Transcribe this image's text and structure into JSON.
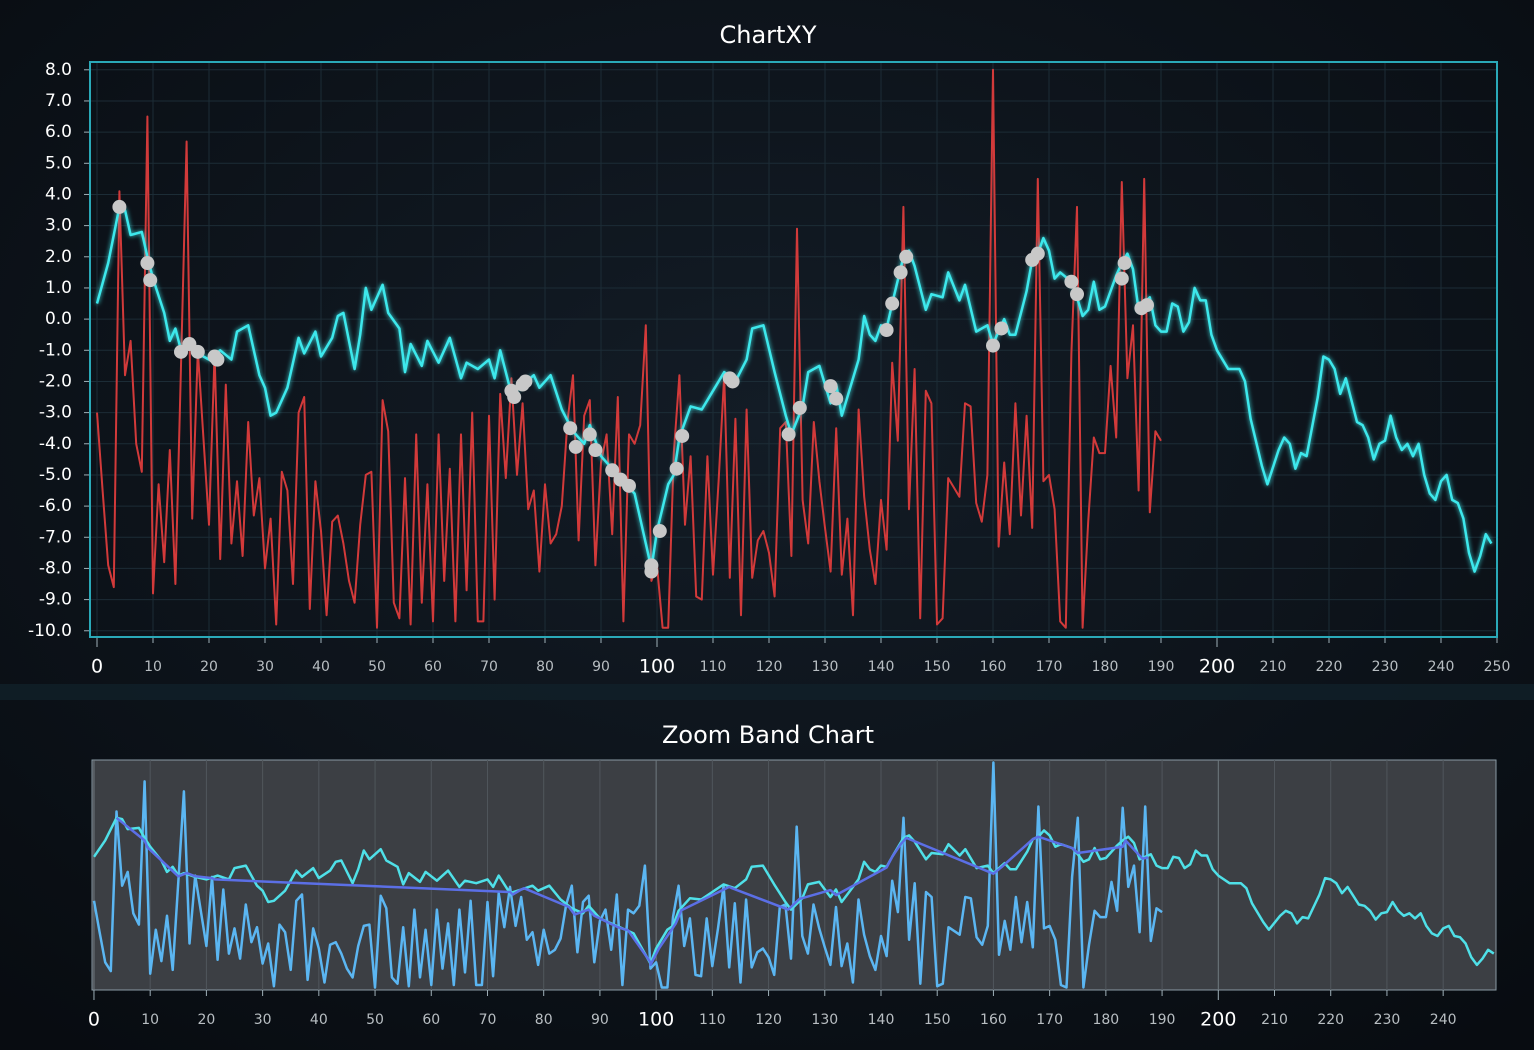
{
  "chart_data": [
    {
      "type": "line",
      "title": "ChartXY",
      "xlim": [
        -1.25,
        250
      ],
      "ylim": [
        -10.2,
        8.25
      ],
      "grid": true,
      "xticks": [
        0,
        10,
        20,
        30,
        40,
        50,
        60,
        70,
        80,
        90,
        100,
        110,
        120,
        130,
        140,
        150,
        160,
        170,
        180,
        190,
        200,
        210,
        220,
        230,
        240,
        250
      ],
      "yticks": [
        {
          "value": -10,
          "label": "-10.0"
        },
        {
          "value": -9,
          "label": "-9.0"
        },
        {
          "value": -8,
          "label": "-8.0"
        },
        {
          "value": -7,
          "label": "-7.0"
        },
        {
          "value": -6,
          "label": "-6.0"
        },
        {
          "value": -5,
          "label": "-5.0"
        },
        {
          "value": -4,
          "label": "-4.0"
        },
        {
          "value": -3,
          "label": "-3.0"
        },
        {
          "value": -2,
          "label": "-2.0"
        },
        {
          "value": -1,
          "label": "-1.0"
        },
        {
          "value": 0,
          "label": "0.0"
        },
        {
          "value": 1,
          "label": "1.0"
        },
        {
          "value": 2,
          "label": "2.0"
        },
        {
          "value": 3,
          "label": "3.0"
        },
        {
          "value": 4,
          "label": "4.0"
        },
        {
          "value": 5,
          "label": "5.0"
        },
        {
          "value": 6,
          "label": "6.0"
        },
        {
          "value": 7,
          "label": "7.0"
        },
        {
          "value": 8,
          "label": "8.0"
        }
      ],
      "series": [
        {
          "type": "line",
          "color": "#d23a3a",
          "x": [
            0,
            1,
            2,
            3,
            4,
            5,
            6,
            7,
            8,
            9,
            10,
            11,
            12,
            13,
            14,
            15,
            16,
            17,
            18,
            19,
            20,
            21,
            22,
            23,
            24,
            25,
            26,
            27,
            28,
            29,
            30,
            31,
            32,
            33,
            34,
            35,
            36,
            37,
            38,
            39,
            40,
            41,
            42,
            43,
            44,
            45,
            46,
            47,
            48,
            49,
            50,
            51,
            52,
            53,
            54,
            55,
            56,
            57,
            58,
            59,
            60,
            61,
            62,
            63,
            64,
            65,
            66,
            67,
            68,
            69,
            70,
            71,
            72,
            73,
            74,
            75,
            76,
            77,
            78,
            79,
            80,
            81,
            82,
            83,
            84,
            85,
            86,
            87,
            88,
            89,
            90,
            91,
            92,
            93,
            94,
            95,
            96,
            97,
            98,
            99,
            100,
            101,
            102,
            103,
            104,
            105,
            106,
            107,
            108,
            109,
            110,
            111,
            112,
            113,
            114,
            115,
            116,
            117,
            118,
            119,
            120,
            121,
            122,
            123,
            124,
            125,
            126,
            127,
            128,
            129,
            130,
            131,
            132,
            133,
            134,
            135,
            136,
            137,
            138,
            139,
            140,
            141,
            142,
            143,
            144,
            145,
            146,
            147,
            148,
            149,
            150,
            151,
            152,
            153,
            154,
            155,
            156,
            157,
            158,
            159,
            160,
            161,
            162,
            163,
            164,
            165,
            166,
            167,
            168,
            169,
            170,
            171,
            172,
            173,
            174,
            175,
            176,
            177,
            178,
            179,
            180,
            181,
            182,
            183,
            184,
            185,
            186,
            187,
            188,
            189,
            190
          ],
          "values": [
            -3.0,
            -5.5,
            -7.9,
            -8.6,
            4.1,
            -1.8,
            -0.7,
            -4.0,
            -4.9,
            6.5,
            -8.8,
            -5.3,
            -7.8,
            -4.2,
            -8.5,
            -1.5,
            5.7,
            -6.4,
            -1.0,
            -3.8,
            -6.6,
            -1.1,
            -7.7,
            -2.1,
            -7.2,
            -5.2,
            -7.6,
            -3.3,
            -6.3,
            -5.1,
            -8.0,
            -6.4,
            -9.8,
            -4.9,
            -5.5,
            -8.5,
            -3.0,
            -2.5,
            -9.3,
            -5.2,
            -6.8,
            -9.5,
            -6.5,
            -6.3,
            -7.2,
            -8.4,
            -9.1,
            -6.6,
            -5.0,
            -4.9,
            -9.9,
            -2.6,
            -3.6,
            -9.1,
            -9.6,
            -5.1,
            -9.8,
            -3.7,
            -9.1,
            -5.3,
            -9.7,
            -3.7,
            -8.4,
            -4.8,
            -9.7,
            -3.7,
            -8.7,
            -3.0,
            -9.7,
            -9.7,
            -3.1,
            -9.0,
            -2.4,
            -5.1,
            -1.9,
            -5.0,
            -2.7,
            -6.1,
            -5.5,
            -8.1,
            -5.3,
            -7.2,
            -6.9,
            -6.0,
            -3.3,
            -1.8,
            -7.1,
            -3.1,
            -2.6,
            -7.9,
            -4.6,
            -3.7,
            -6.9,
            -2.5,
            -9.7,
            -3.7,
            -4.0,
            -3.4,
            -0.2,
            -8.4,
            -7.9,
            -9.9,
            -9.9,
            -4.3,
            -1.8,
            -6.6,
            -4.4,
            -8.9,
            -9.0,
            -4.4,
            -8.2,
            -5.2,
            -1.8,
            -8.3,
            -3.2,
            -9.5,
            -2.9,
            -8.3,
            -7.1,
            -6.8,
            -7.5,
            -8.9,
            -3.5,
            -3.3,
            -7.6,
            2.9,
            -5.8,
            -7.2,
            -3.3,
            -5.2,
            -6.7,
            -8.1,
            -3.5,
            -8.2,
            -6.4,
            -9.5,
            -2.9,
            -5.7,
            -7.4,
            -8.5,
            -5.8,
            -7.4,
            -1.4,
            -3.9,
            3.6,
            -6.1,
            -1.6,
            -9.6,
            -2.3,
            -2.7,
            -9.8,
            -9.6,
            -5.1,
            -5.4,
            -5.7,
            -2.7,
            -2.8,
            -5.9,
            -6.5,
            -5.0,
            8.0,
            -7.3,
            -4.6,
            -6.9,
            -2.7,
            -6.3,
            -3.1,
            -6.7,
            4.5,
            -5.2,
            -5.0,
            -6.1,
            -9.7,
            -9.9,
            -1.1,
            3.6,
            -9.9,
            -6.5,
            -3.8,
            -4.3,
            -4.3,
            -1.5,
            -3.8,
            4.4,
            -1.9,
            -0.2,
            -5.5,
            4.5,
            -6.2,
            -3.6,
            -3.9
          ]
        },
        {
          "type": "line",
          "color": "#3ee8ec",
          "x": [
            0,
            2,
            4,
            5,
            6,
            8,
            9,
            10,
            12,
            13,
            14,
            15,
            16,
            18,
            20,
            22,
            24,
            25,
            27,
            29,
            30,
            31,
            32,
            34,
            36,
            37,
            39,
            40,
            42,
            43,
            44,
            46,
            47,
            48,
            49,
            51,
            52,
            54,
            55,
            56,
            58,
            59,
            61,
            63,
            65,
            66,
            68,
            70,
            71,
            72,
            74,
            76,
            78,
            79,
            81,
            83,
            85,
            87,
            88,
            90,
            92,
            94,
            96,
            98,
            99,
            100,
            102,
            103,
            104,
            106,
            108,
            110,
            112,
            114,
            116,
            117,
            119,
            121,
            123,
            124,
            126,
            127,
            129,
            131,
            132,
            133,
            134,
            136,
            137,
            138,
            139,
            140,
            141,
            142,
            144,
            145,
            146,
            148,
            149,
            151,
            152,
            154,
            155,
            157,
            159,
            160,
            162,
            163,
            164,
            166,
            167,
            168,
            169,
            170,
            171,
            172,
            174,
            175,
            176,
            177,
            178,
            179,
            180,
            182,
            183,
            184,
            185,
            186,
            187,
            188,
            189,
            190,
            191,
            192,
            193,
            194,
            195,
            196,
            197,
            198,
            199,
            200,
            202,
            204,
            205,
            206,
            208,
            209,
            211,
            212,
            213,
            214,
            215,
            216,
            218,
            219,
            220,
            221,
            222,
            223,
            224,
            225,
            226,
            227,
            228,
            229,
            230,
            231,
            232,
            233,
            234,
            235,
            236,
            237,
            238,
            239,
            240,
            241,
            242,
            243,
            244,
            245,
            246,
            247,
            248,
            249
          ],
          "values": [
            0.5,
            1.8,
            3.6,
            3.5,
            2.7,
            2.8,
            2.0,
            1.3,
            0.2,
            -0.7,
            -0.3,
            -1.0,
            -0.8,
            -1.1,
            -1.3,
            -1.0,
            -1.3,
            -0.4,
            -0.2,
            -1.8,
            -2.2,
            -3.1,
            -3.0,
            -2.2,
            -0.6,
            -1.1,
            -0.4,
            -1.2,
            -0.6,
            0.1,
            0.2,
            -1.6,
            -0.5,
            1.0,
            0.3,
            1.1,
            0.2,
            -0.3,
            -1.7,
            -0.8,
            -1.5,
            -0.7,
            -1.4,
            -0.6,
            -1.9,
            -1.4,
            -1.6,
            -1.3,
            -1.9,
            -1.0,
            -2.4,
            -2.1,
            -1.8,
            -2.2,
            -1.8,
            -2.9,
            -3.6,
            -4.0,
            -3.4,
            -4.4,
            -4.8,
            -5.2,
            -5.6,
            -7.2,
            -8.0,
            -6.8,
            -5.3,
            -5.0,
            -3.8,
            -2.8,
            -2.9,
            -2.3,
            -1.7,
            -2.0,
            -1.3,
            -0.3,
            -0.2,
            -1.7,
            -3.1,
            -3.7,
            -2.8,
            -1.7,
            -1.5,
            -2.7,
            -2.1,
            -3.1,
            -2.5,
            -1.3,
            0.1,
            -0.5,
            -0.7,
            -0.2,
            -0.3,
            0.5,
            2.0,
            2.2,
            1.7,
            0.3,
            0.8,
            0.7,
            1.5,
            0.6,
            1.1,
            -0.4,
            -0.2,
            -0.8,
            0.0,
            -0.5,
            -0.5,
            0.9,
            1.9,
            2.1,
            2.6,
            2.2,
            1.3,
            1.5,
            1.2,
            0.7,
            0.1,
            0.3,
            1.2,
            0.3,
            0.4,
            1.4,
            1.8,
            2.1,
            1.6,
            0.3,
            0.5,
            0.7,
            -0.2,
            -0.4,
            -0.4,
            0.5,
            0.4,
            -0.4,
            -0.1,
            1.0,
            0.6,
            0.6,
            -0.5,
            -1.0,
            -1.6,
            -1.6,
            -2.0,
            -3.2,
            -4.7,
            -5.3,
            -4.2,
            -3.8,
            -4.0,
            -4.8,
            -4.3,
            -4.4,
            -2.5,
            -1.2,
            -1.3,
            -1.6,
            -2.4,
            -1.9,
            -2.6,
            -3.3,
            -3.4,
            -3.8,
            -4.5,
            -4.0,
            -3.9,
            -3.1,
            -3.8,
            -4.2,
            -4.0,
            -4.4,
            -4.0,
            -5.0,
            -5.6,
            -5.8,
            -5.2,
            -5.0,
            -5.8,
            -5.9,
            -6.4,
            -7.5,
            -8.1,
            -7.6,
            -6.9,
            -7.2
          ]
        },
        {
          "type": "scatter",
          "color": "#c8c8c8",
          "x": [
            4,
            9,
            9.5,
            15,
            16.5,
            18,
            21,
            21.5,
            74,
            74.5,
            76,
            76.5,
            84.5,
            85.5,
            88,
            89,
            92,
            93.5,
            95,
            99,
            99,
            100.5,
            103.5,
            104.5,
            113,
            113.5,
            123.5,
            125.5,
            131,
            132,
            141,
            142,
            143.5,
            144.5,
            160,
            161.5,
            167,
            168,
            174,
            175,
            183,
            183.5,
            186.5,
            187.5
          ],
          "values": [
            3.6,
            1.8,
            1.25,
            -1.05,
            -0.8,
            -1.05,
            -1.2,
            -1.3,
            -2.3,
            -2.5,
            -2.1,
            -2.0,
            -3.5,
            -4.1,
            -3.7,
            -4.2,
            -4.85,
            -5.15,
            -5.35,
            -7.9,
            -8.1,
            -6.8,
            -4.8,
            -3.75,
            -1.9,
            -2.0,
            -3.7,
            -2.85,
            -2.15,
            -2.55,
            -0.35,
            0.5,
            1.5,
            2.0,
            -0.85,
            -0.3,
            1.9,
            2.1,
            1.2,
            0.8,
            1.3,
            1.8,
            0.35,
            0.45
          ]
        }
      ]
    },
    {
      "type": "line",
      "title": "Zoom Band Chart",
      "xlim": [
        -0.35,
        249.4
      ],
      "ylim": [
        -10.1,
        8.2
      ],
      "xticks": [
        0,
        10,
        20,
        30,
        40,
        50,
        60,
        70,
        80,
        90,
        100,
        110,
        120,
        130,
        140,
        150,
        160,
        170,
        180,
        190,
        200,
        210,
        220,
        230,
        240
      ],
      "colors": [
        "#5bb6f2",
        "#4fe0e8",
        "#5b6fe6"
      ]
    }
  ]
}
